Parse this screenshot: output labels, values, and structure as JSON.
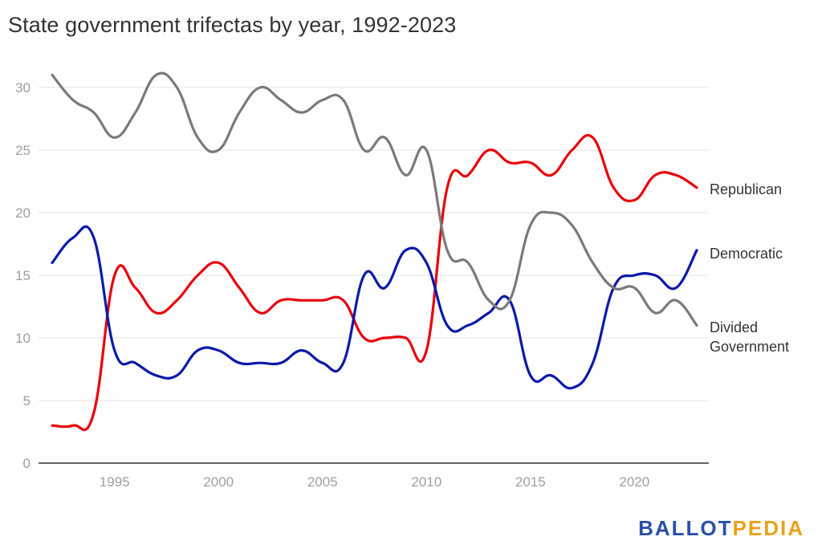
{
  "title": "State government trifectas by year, 1992-2023",
  "logo": {
    "part1": "BALLOT",
    "part2": "PEDIA"
  },
  "chart_data": {
    "type": "line",
    "title": "State government trifectas by year, 1992-2023",
    "xlabel": "",
    "ylabel": "",
    "xlim": [
      1992,
      2023
    ],
    "ylim": [
      0,
      30
    ],
    "x_ticks": [
      1995,
      2000,
      2005,
      2010,
      2015,
      2020
    ],
    "y_ticks": [
      0,
      5,
      10,
      15,
      20,
      25,
      30
    ],
    "grid": "horizontal",
    "legend": "direct labels at right end of lines",
    "x": [
      1992,
      1993,
      1994,
      1995,
      1996,
      1997,
      1998,
      1999,
      2000,
      2001,
      2002,
      2003,
      2004,
      2005,
      2006,
      2007,
      2008,
      2009,
      2010,
      2011,
      2012,
      2013,
      2014,
      2015,
      2016,
      2017,
      2018,
      2019,
      2020,
      2021,
      2022,
      2023
    ],
    "series": [
      {
        "name": "Republican",
        "color": "#e8000b",
        "values": [
          3,
          3,
          4,
          15,
          14,
          12,
          13,
          15,
          16,
          14,
          12,
          13,
          13,
          13,
          13,
          10,
          10,
          10,
          9,
          22,
          23,
          25,
          24,
          24,
          23,
          25,
          26,
          22,
          21,
          23,
          23,
          22
        ]
      },
      {
        "name": "Democratic",
        "color": "#0a1aa8",
        "values": [
          16,
          18,
          18,
          9,
          8,
          7,
          7,
          9,
          9,
          8,
          8,
          8,
          9,
          8,
          8,
          15,
          14,
          17,
          16,
          11,
          11,
          12,
          13,
          7,
          7,
          6,
          8,
          14,
          15,
          15,
          14,
          17
        ]
      },
      {
        "name": "Divided Government",
        "color": "#7a7a7a",
        "values": [
          31,
          29,
          28,
          26,
          28,
          31,
          30,
          26,
          25,
          28,
          30,
          29,
          28,
          29,
          29,
          25,
          26,
          23,
          25,
          17,
          16,
          13,
          13,
          19,
          20,
          19,
          16,
          14,
          14,
          12,
          13,
          11
        ]
      }
    ],
    "labels": [
      "Republican",
      "Democratic",
      "Divided",
      "Government"
    ]
  }
}
